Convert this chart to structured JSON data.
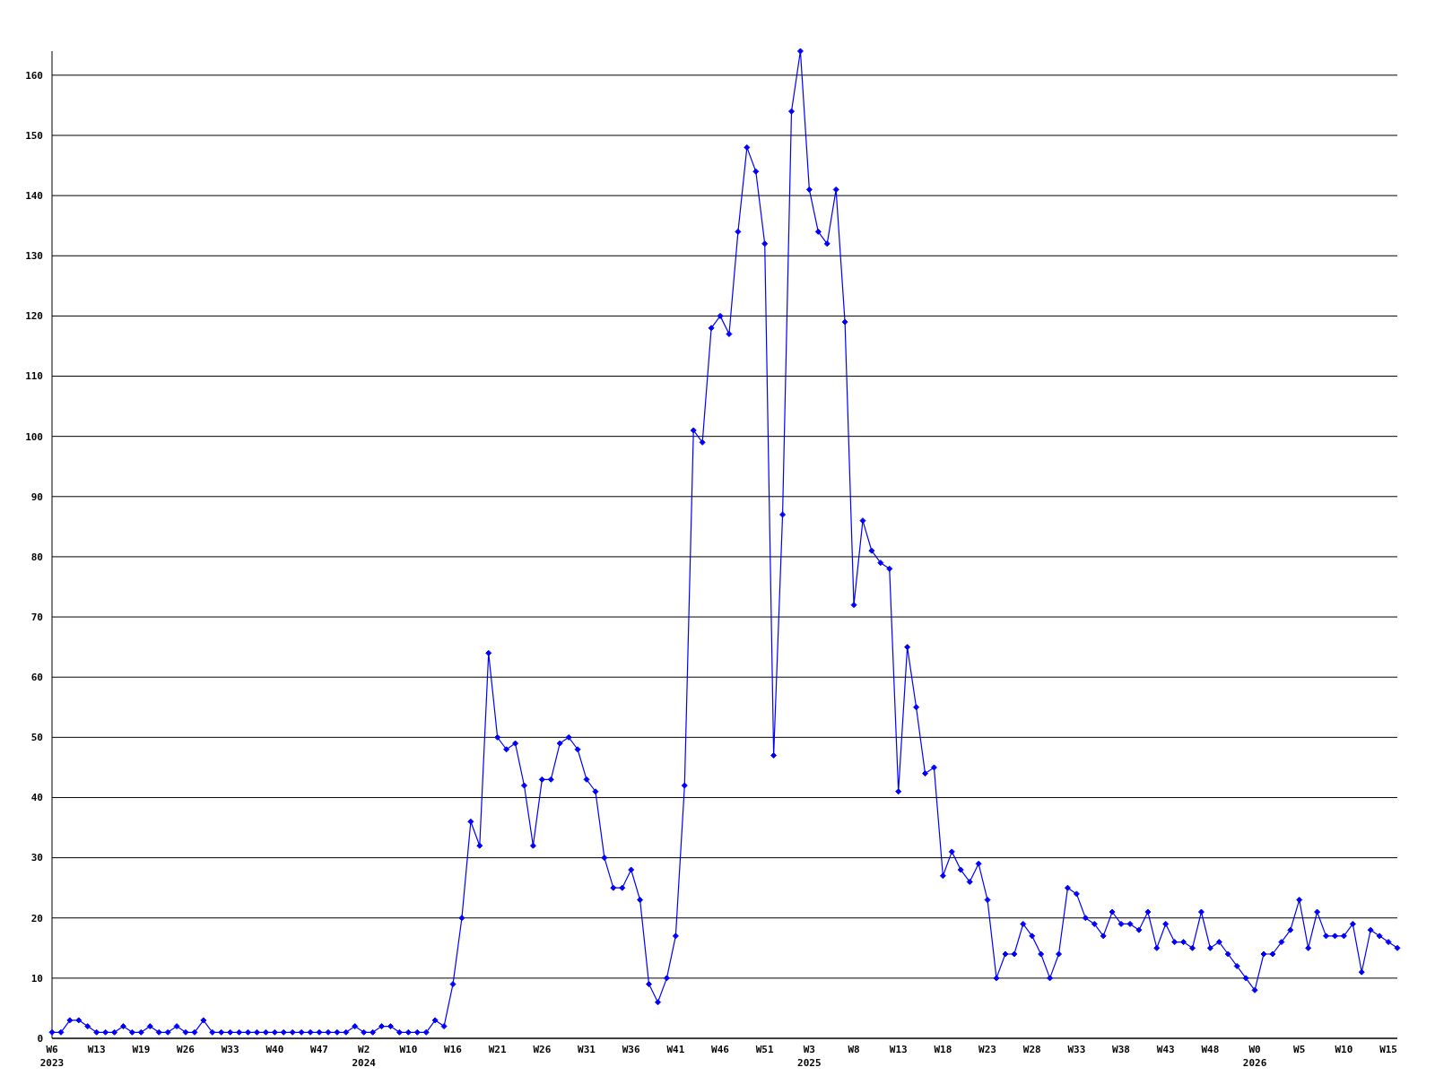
{
  "chart_data": {
    "type": "line",
    "categories": [
      "W6\n2023",
      null,
      null,
      null,
      null,
      "W13",
      null,
      null,
      null,
      null,
      "W19",
      null,
      null,
      null,
      null,
      "W26",
      null,
      null,
      null,
      null,
      "W33",
      null,
      null,
      null,
      null,
      "W40",
      null,
      null,
      null,
      null,
      "W47",
      null,
      null,
      null,
      null,
      "W2\n2024",
      null,
      null,
      null,
      null,
      "W10",
      null,
      null,
      null,
      null,
      "W16",
      null,
      null,
      null,
      null,
      "W21",
      null,
      null,
      null,
      null,
      "W26",
      null,
      null,
      null,
      null,
      "W31",
      null,
      null,
      null,
      null,
      "W36",
      null,
      null,
      null,
      null,
      "W41",
      null,
      null,
      null,
      null,
      "W46",
      null,
      null,
      null,
      null,
      "W51",
      null,
      null,
      null,
      null,
      "W3\n2025",
      null,
      null,
      null,
      null,
      "W8",
      null,
      null,
      null,
      null,
      "W13",
      null,
      null,
      null,
      null,
      "W18",
      null,
      null,
      null,
      null,
      "W23",
      null,
      null,
      null,
      null,
      "W28",
      null,
      null,
      null,
      null,
      "W33",
      null,
      null,
      null,
      null,
      "W38",
      null,
      null,
      null,
      null,
      "W43",
      null,
      null,
      null,
      null,
      "W48",
      null,
      null,
      null,
      null,
      "W0\n2026",
      null,
      null,
      null,
      null,
      "W5",
      null,
      null,
      null,
      null,
      "W10",
      null,
      null,
      null,
      null,
      "W15",
      null
    ],
    "series": [
      {
        "color": "#0000ff",
        "values": [
          1,
          1,
          3,
          3,
          2,
          1,
          1,
          1,
          2,
          1,
          1,
          2,
          1,
          1,
          2,
          1,
          1,
          3,
          1,
          1,
          1,
          1,
          1,
          1,
          1,
          1,
          1,
          1,
          1,
          1,
          1,
          1,
          1,
          1,
          2,
          1,
          1,
          2,
          2,
          1,
          1,
          1,
          1,
          3,
          2,
          9,
          20,
          36,
          32,
          64,
          50,
          48,
          49,
          42,
          32,
          43,
          43,
          49,
          50,
          48,
          43,
          41,
          30,
          25,
          25,
          28,
          23,
          9,
          6,
          10,
          17,
          42,
          101,
          99,
          118,
          120,
          117,
          134,
          148,
          144,
          132,
          47,
          87,
          154,
          164,
          141,
          134,
          132,
          141,
          119,
          72,
          86,
          81,
          79,
          78,
          41,
          65,
          55,
          44,
          45,
          27,
          31,
          28,
          26,
          29,
          23,
          10,
          14,
          14,
          19,
          17,
          14,
          10,
          14,
          25,
          24,
          20,
          19,
          17,
          21,
          19,
          19,
          18,
          21,
          15,
          19,
          16,
          16,
          15,
          21,
          15,
          16,
          14,
          12,
          10,
          8,
          14,
          14,
          16,
          18,
          23,
          15,
          21,
          17,
          17,
          17,
          19,
          11,
          18,
          17,
          16,
          15
        ]
      }
    ],
    "ylim": [
      0,
      164
    ],
    "yticks": [
      0,
      10,
      20,
      30,
      40,
      50,
      60,
      70,
      80,
      90,
      100,
      110,
      120,
      130,
      140,
      150,
      160
    ],
    "grid": "y",
    "marker": "diamond",
    "line_style": "solid"
  }
}
